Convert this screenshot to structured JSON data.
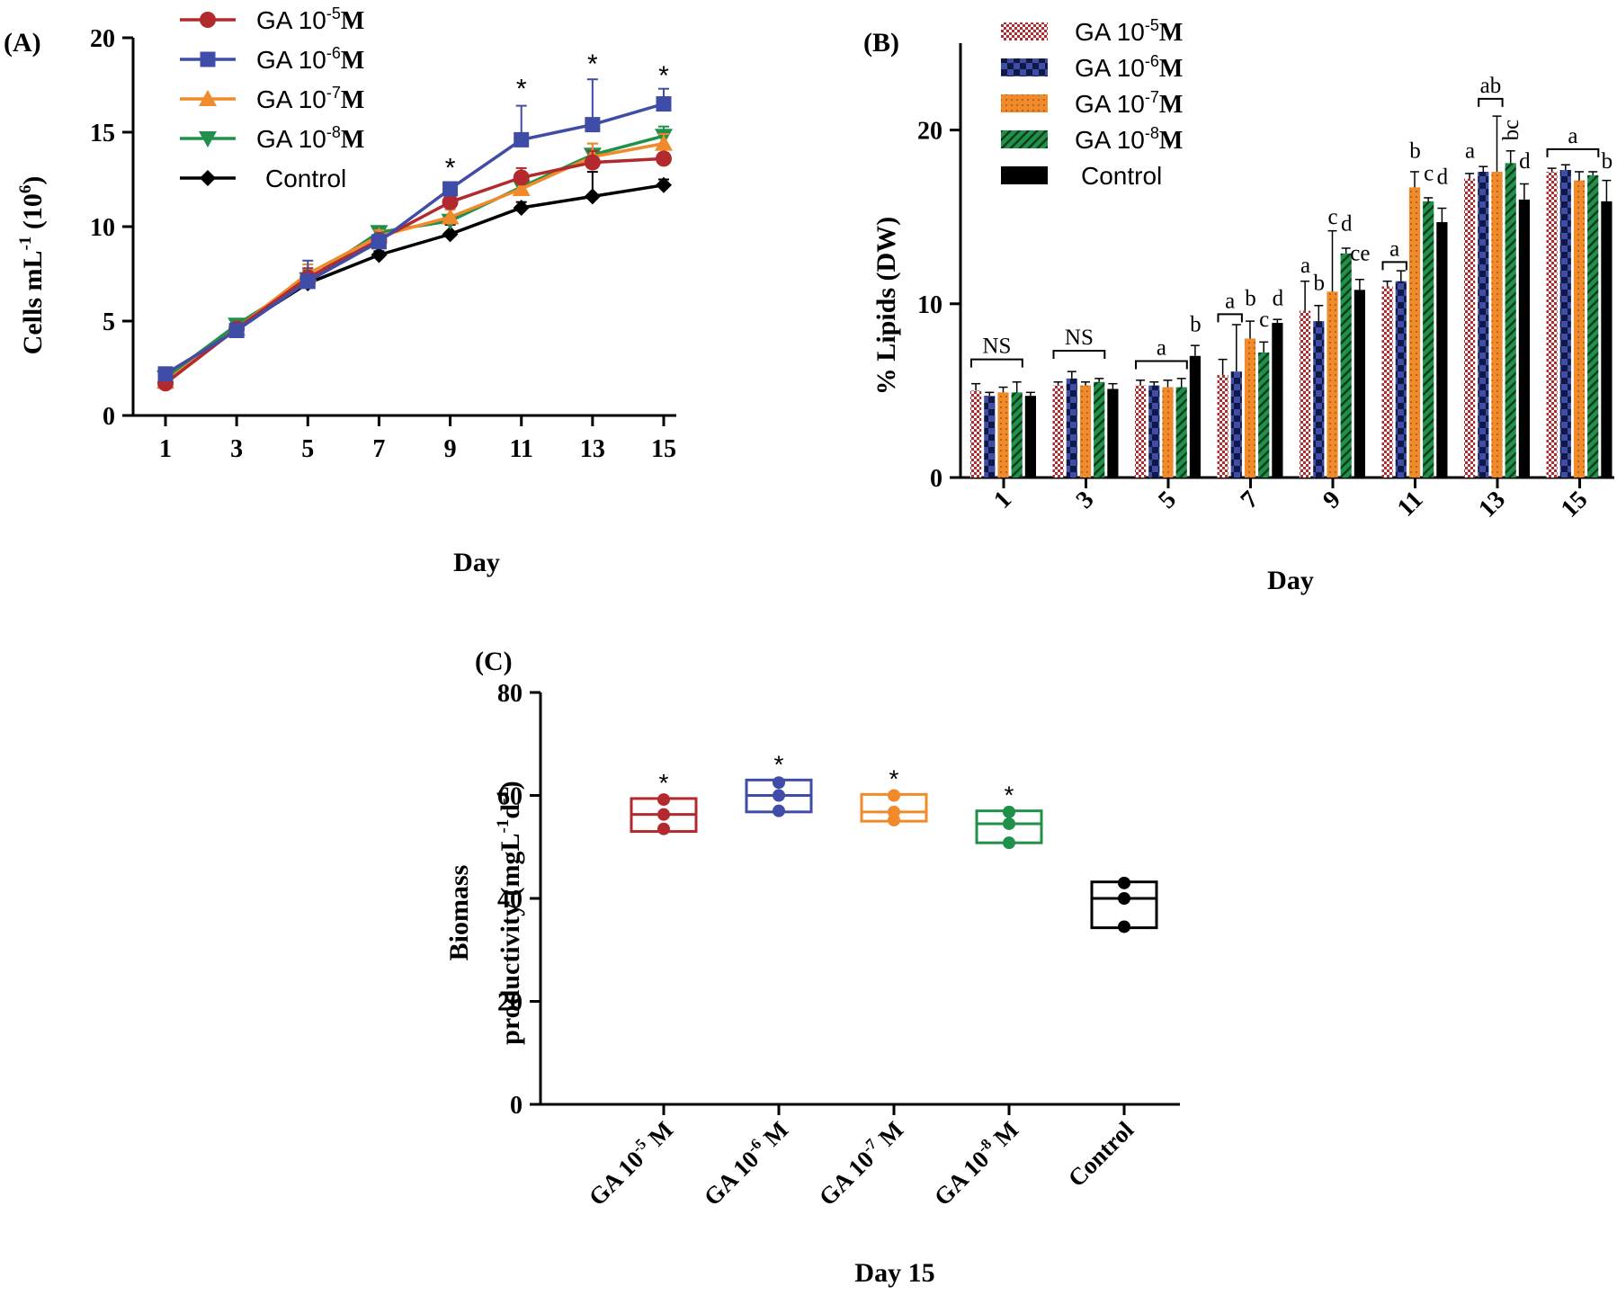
{
  "colors": {
    "ga5": "#B22A2E",
    "ga6": "#3F4DA8",
    "ga7": "#F08A2A",
    "ga8": "#20904A",
    "control": "#000000",
    "axis": "#000000"
  },
  "series_labels": {
    "names": [
      "GA 10",
      "GA 10",
      "GA 10",
      "GA 10",
      "Control"
    ],
    "exponents": [
      "-5",
      "-6",
      "-7",
      "-8",
      ""
    ],
    "suffix": "M"
  },
  "box_category_labels": {
    "prefix": "GA 10",
    "exponents": [
      "-5",
      "-6",
      "-7",
      "-8"
    ],
    "suffix": " M",
    "control": "Control"
  },
  "chart_data": [
    {
      "id": "A",
      "panel_label": "(A)",
      "type": "line",
      "x": [
        1,
        3,
        5,
        7,
        9,
        11,
        13,
        15
      ],
      "xlabel": "Day",
      "ylabel": "Cells mL",
      "ylabel_sup1": "-1",
      "ylabel_mid": " (10",
      "ylabel_sup2": "6",
      "ylabel_end": ")",
      "ylim": [
        0,
        20
      ],
      "yticks": [
        0,
        5,
        10,
        15,
        20
      ],
      "legend_position": "top-left",
      "series": [
        {
          "name": "GA 10-5 M",
          "values": [
            1.7,
            4.6,
            7.3,
            9.3,
            11.3,
            12.6,
            13.4,
            13.6
          ],
          "err": [
            0.3,
            0.2,
            0.5,
            0.3,
            0.5,
            0.5,
            0.6,
            0.3
          ],
          "marker": "circle"
        },
        {
          "name": "GA 10-6 M",
          "values": [
            2.2,
            4.5,
            7.1,
            9.2,
            12.0,
            14.6,
            15.4,
            16.5
          ],
          "err": [
            0.2,
            0.2,
            1.1,
            0.4,
            0.3,
            1.8,
            2.4,
            0.8
          ],
          "marker": "square"
        },
        {
          "name": "GA 10-7 M",
          "values": [
            1.8,
            4.6,
            7.5,
            9.5,
            10.5,
            12.0,
            13.7,
            14.4
          ],
          "err": [
            0.2,
            0.2,
            0.5,
            0.3,
            0.4,
            0.4,
            0.7,
            0.5
          ],
          "marker": "triangle-up"
        },
        {
          "name": "GA 10-8 M",
          "values": [
            2.0,
            4.8,
            7.2,
            9.7,
            10.3,
            12.1,
            13.8,
            14.8
          ],
          "err": [
            0.2,
            0.2,
            0.5,
            0.3,
            0.3,
            0.4,
            0.6,
            0.5
          ],
          "marker": "triangle-down"
        },
        {
          "name": "Control",
          "values": [
            1.8,
            4.6,
            7.0,
            8.5,
            9.6,
            11.0,
            11.6,
            12.2
          ],
          "err": [
            0.2,
            0.2,
            0.4,
            0.2,
            0.5,
            0.3,
            1.3,
            0.3
          ],
          "marker": "diamond"
        }
      ],
      "annotations": [
        {
          "x": 9,
          "y": 13.3,
          "text": "*"
        },
        {
          "x": 11,
          "y": 17.5,
          "text": "*"
        },
        {
          "x": 13,
          "y": 18.8,
          "text": "*"
        },
        {
          "x": 15,
          "y": 18.2,
          "text": "*"
        }
      ]
    },
    {
      "id": "B",
      "panel_label": "(B)",
      "type": "bar",
      "categories": [
        "1",
        "3",
        "5",
        "7",
        "9",
        "11",
        "13",
        "15"
      ],
      "xlabel": "Day",
      "ylabel": "% Lipids (DW)",
      "ylim": [
        0,
        25
      ],
      "yticks": [
        0,
        10,
        20
      ],
      "legend_position": "top-left",
      "series": [
        {
          "name": "GA 10-5 M",
          "values": [
            5.0,
            5.3,
            5.3,
            5.9,
            9.6,
            11.0,
            17.2,
            17.6
          ],
          "err": [
            0.4,
            0.2,
            0.3,
            0.9,
            1.7,
            0.3,
            0.3,
            0.2
          ]
        },
        {
          "name": "GA 10-6 M",
          "values": [
            4.7,
            5.7,
            5.3,
            6.1,
            9.0,
            11.3,
            17.6,
            17.7
          ],
          "err": [
            0.2,
            0.4,
            0.2,
            2.7,
            0.9,
            0.6,
            0.3,
            0.3
          ]
        },
        {
          "name": "GA 10-7 M",
          "values": [
            4.9,
            5.3,
            5.2,
            8.0,
            10.7,
            16.7,
            17.6,
            17.1
          ],
          "err": [
            0.3,
            0.2,
            0.4,
            1.0,
            3.5,
            0.9,
            3.2,
            0.5
          ]
        },
        {
          "name": "GA 10-8 M",
          "values": [
            4.9,
            5.5,
            5.2,
            7.2,
            12.9,
            15.9,
            18.1,
            17.4
          ],
          "err": [
            0.6,
            0.2,
            0.5,
            0.6,
            0.3,
            0.2,
            0.7,
            0.2
          ]
        },
        {
          "name": "Control",
          "values": [
            4.7,
            5.1,
            7.0,
            8.9,
            10.8,
            14.7,
            16.0,
            15.9
          ],
          "err": [
            0.2,
            0.3,
            0.6,
            0.2,
            0.6,
            0.8,
            0.9,
            1.2
          ]
        }
      ],
      "annotations": [
        {
          "group": 0,
          "from": 0,
          "to": 3,
          "y": 6.8,
          "text": "NS",
          "bracket": true
        },
        {
          "group": 1,
          "from": 0,
          "to": 3,
          "y": 7.3,
          "text": "NS",
          "bracket": true
        },
        {
          "group": 2,
          "from": 0,
          "to": 3,
          "y": 6.7,
          "text": "a",
          "bracket": true
        },
        {
          "group": 2,
          "bar": 4,
          "y": 8.4,
          "text": "b"
        },
        {
          "group": 3,
          "from": 0,
          "to": 1,
          "y": 9.4,
          "text": "a",
          "bracket": true
        },
        {
          "group": 3,
          "bar": 2,
          "y": 9.9,
          "text": "b"
        },
        {
          "group": 3,
          "bar": 3,
          "y": 8.7,
          "text": "c"
        },
        {
          "group": 3,
          "bar": 4,
          "y": 9.9,
          "text": "d"
        },
        {
          "group": 4,
          "bar": 0,
          "y": 11.8,
          "text": "a"
        },
        {
          "group": 4,
          "bar": 1,
          "y": 10.8,
          "text": "b"
        },
        {
          "group": 4,
          "bar": 2,
          "y": 14.6,
          "text": "c"
        },
        {
          "group": 4,
          "bar": 3,
          "y": 14.2,
          "text": "d"
        },
        {
          "group": 4,
          "bar": 4,
          "y": 12.5,
          "text": "ce"
        },
        {
          "group": 5,
          "from": 0,
          "to": 1,
          "y": 12.4,
          "text": "a",
          "bracket": true
        },
        {
          "group": 5,
          "bar": 2,
          "y": 18.4,
          "text": "b"
        },
        {
          "group": 5,
          "bar": 3,
          "y": 17.1,
          "text": "c"
        },
        {
          "group": 5,
          "bar": 4,
          "y": 16.9,
          "text": "d"
        },
        {
          "group": 6,
          "bar": 0,
          "y": 18.4,
          "text": "a"
        },
        {
          "group": 6,
          "from": 1,
          "to": 2,
          "y": 21.8,
          "text": "ab",
          "bracket": true
        },
        {
          "group": 6,
          "bar": 3,
          "y": 20.0,
          "text": "bc",
          "rotated": true
        },
        {
          "group": 6,
          "bar": 4,
          "y": 17.8,
          "text": "d"
        },
        {
          "group": 7,
          "from": 0,
          "to": 3,
          "y": 18.9,
          "text": "a",
          "bracket": true
        },
        {
          "group": 7,
          "bar": 4,
          "y": 17.8,
          "text": "b"
        }
      ]
    },
    {
      "id": "C",
      "panel_label": "(C)",
      "type": "box",
      "categories": [
        "GA 10-5 M",
        "GA 10-6 M",
        "GA 10-7 M",
        "GA 10-8 M",
        "Control"
      ],
      "xlabel": "Day 15",
      "ylabel_line1": "Biomass",
      "ylabel_line2": "productivity (mgL",
      "ylabel_sup1": "-1",
      "ylabel_mid": "d",
      "ylabel_sup2": "-1",
      "ylabel_end": ")",
      "ylim": [
        0,
        80
      ],
      "yticks": [
        0,
        20,
        40,
        60,
        80
      ],
      "boxes": [
        {
          "min": 53.0,
          "median": 56.3,
          "max": 59.4,
          "points": [
            53.5,
            56.3,
            59.2
          ],
          "significant": true
        },
        {
          "min": 56.8,
          "median": 60.0,
          "max": 63.0,
          "points": [
            57.0,
            60.0,
            62.5
          ],
          "significant": true
        },
        {
          "min": 55.0,
          "median": 56.8,
          "max": 60.2,
          "points": [
            55.2,
            56.8,
            60.0
          ],
          "significant": true
        },
        {
          "min": 50.8,
          "median": 54.5,
          "max": 57.0,
          "points": [
            50.8,
            54.5,
            56.8
          ],
          "significant": true
        },
        {
          "min": 34.3,
          "median": 40.0,
          "max": 43.2,
          "points": [
            34.5,
            40.0,
            43.0
          ],
          "significant": false
        }
      ],
      "significance_marker": "*"
    }
  ]
}
